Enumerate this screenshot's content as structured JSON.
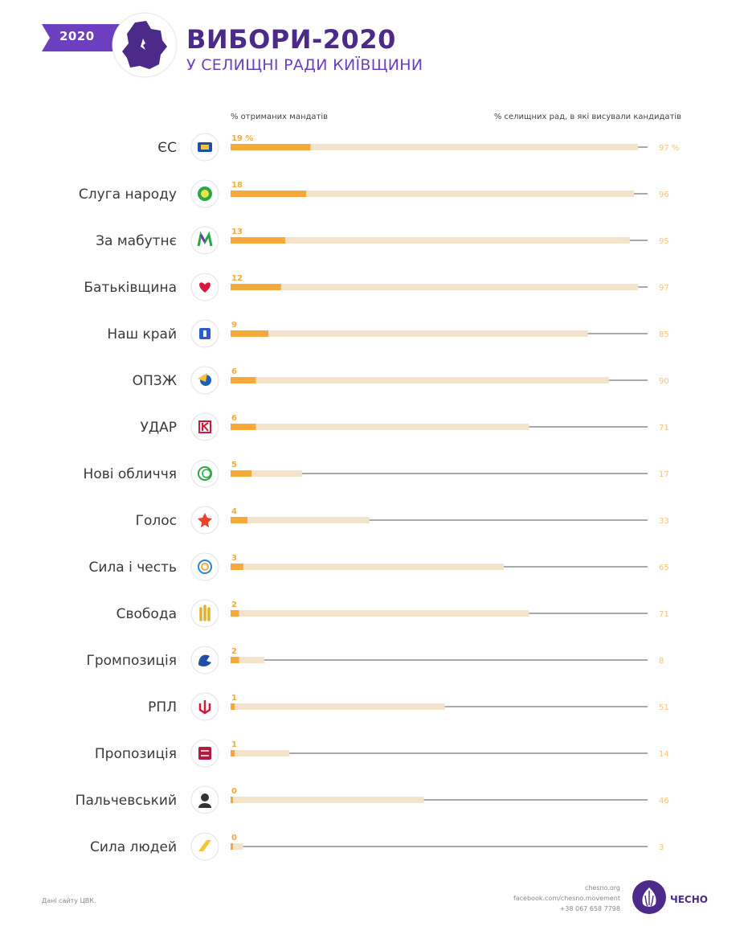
{
  "header": {
    "year": "2020",
    "title": "ВИБОРИ-2020",
    "subtitle": "У СЕЛИЩНІ РАДИ КИЇВЩИНИ"
  },
  "colors": {
    "purple": "#4b2a8a",
    "mandate_bar": "#f4a93a",
    "nominated_bar": "#f3e3cb",
    "connector": "#555555"
  },
  "chart_data": {
    "type": "bar",
    "orientation": "horizontal",
    "xlabel_left": "% отриманих мандатів",
    "xlabel_right": "% селищних рад, в які висували кандидатів",
    "xlim": [
      0,
      100
    ],
    "categories": [
      "ЄС",
      "Слуга народу",
      "За мабутнє",
      "Батьківщина",
      "Наш край",
      "ОПЗЖ",
      "УДАР",
      "Нові обличчя",
      "Голос",
      "Сила і честь",
      "Свобода",
      "Громпозиція",
      "РПЛ",
      "Пропозиція",
      "Пальчевський",
      "Сила людей"
    ],
    "icons": [
      "es-logo-icon",
      "sluha-narodu-logo-icon",
      "za-maibutnie-logo-icon",
      "batkivshchyna-heart-icon",
      "nash-krai-logo-icon",
      "opzzh-logo-icon",
      "udar-logo-icon",
      "novi-oblychchia-logo-icon",
      "holos-logo-icon",
      "syla-i-chest-logo-icon",
      "svoboda-hand-icon",
      "hrompozytsiia-logo-icon",
      "rpl-trident-icon",
      "propozytsiia-logo-icon",
      "palchevskyi-portrait-icon",
      "syla-liudei-logo-icon"
    ],
    "series": [
      {
        "name": "% отриманих мандатів",
        "values": [
          19,
          18,
          13,
          12,
          9,
          6,
          6,
          5,
          4,
          3,
          2,
          2,
          1,
          1,
          0,
          0
        ],
        "labels": [
          "19 %",
          "18",
          "13",
          "12",
          "9",
          "6",
          "6",
          "5",
          "4",
          "3",
          "2",
          "2",
          "1",
          "1",
          "0",
          "0"
        ]
      },
      {
        "name": "% селищних рад, в які висували кандидатів",
        "values": [
          97,
          96,
          95,
          97,
          85,
          90,
          71,
          17,
          33,
          65,
          71,
          8,
          51,
          14,
          46,
          3
        ],
        "labels": [
          "97 %",
          "96",
          "95",
          "97",
          "85",
          "90",
          "71",
          "17",
          "33",
          "65",
          "71",
          "8",
          "51",
          "14",
          "46",
          "3"
        ]
      }
    ]
  },
  "footer": {
    "source": "Дані сайту ЦВК.",
    "website": "chesno.org",
    "facebook": "facebook.com/chesno.movement",
    "phone": "+38 067 658 7798",
    "brand": "ЧЕСНО"
  }
}
